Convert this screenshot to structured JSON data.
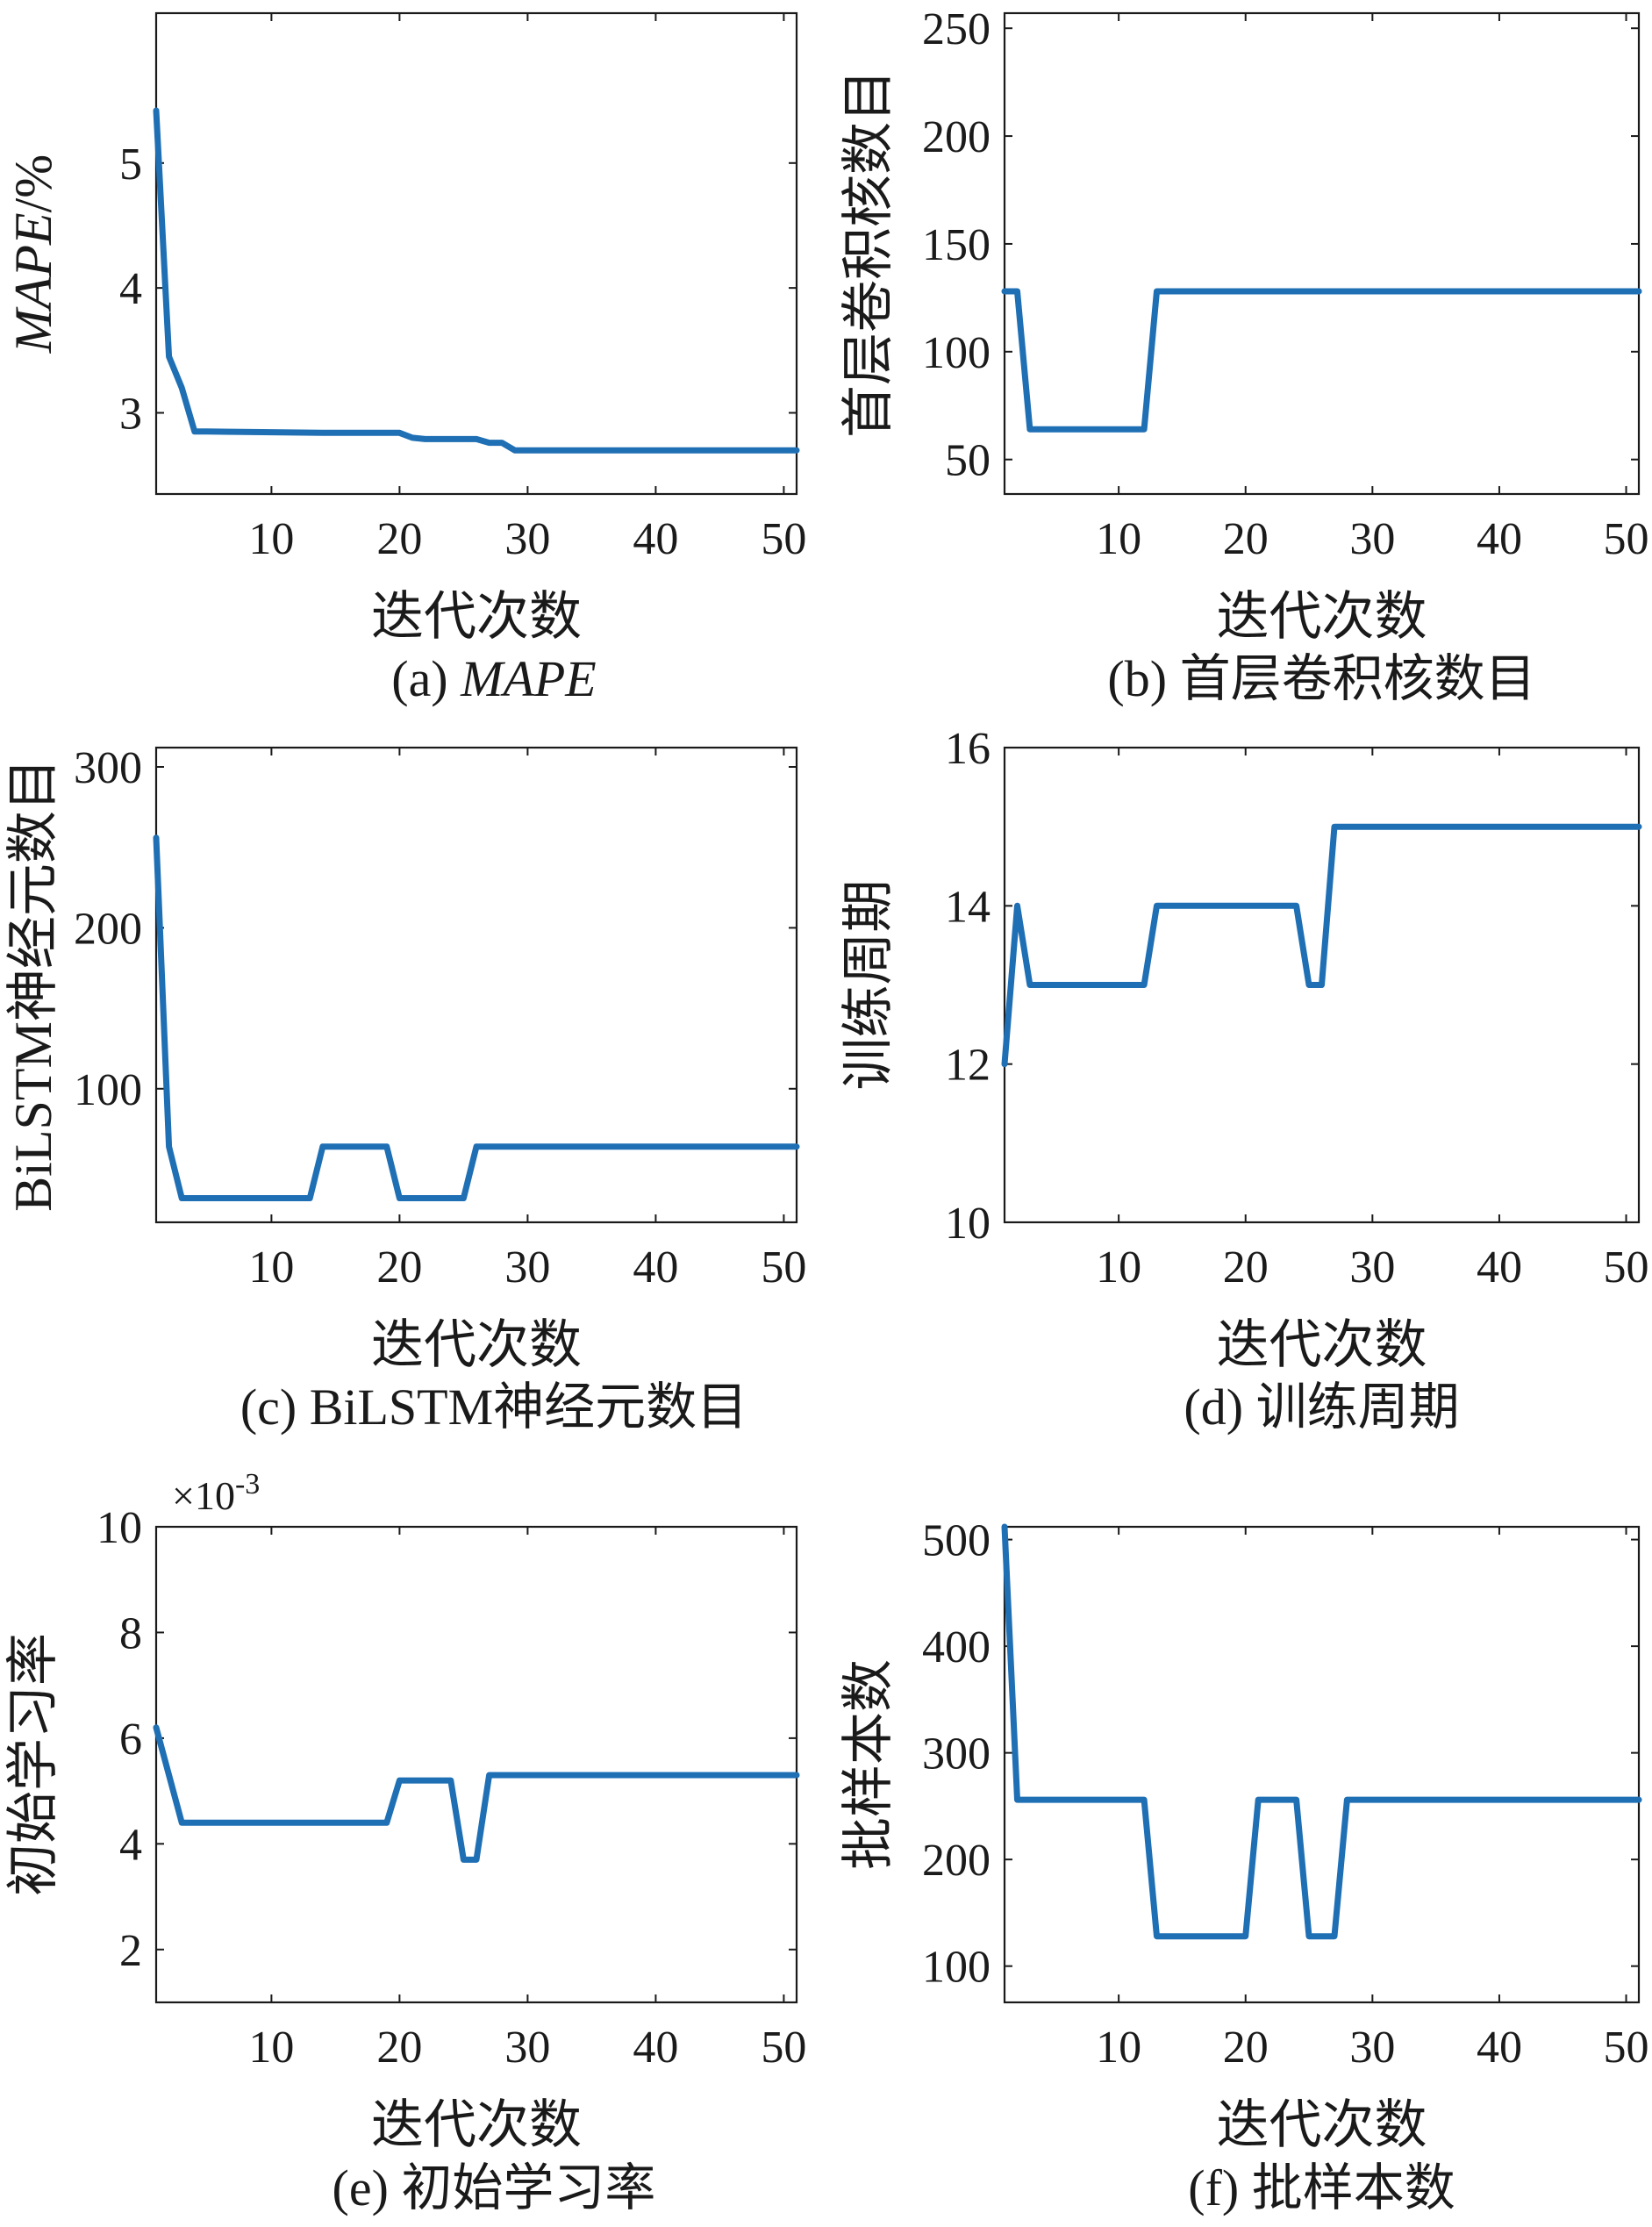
{
  "figure": {
    "line_color": "#1f6fb4",
    "axis_color": "#1a1a1a"
  },
  "chart_data": [
    {
      "id": "a",
      "type": "line",
      "caption_prefix": "(a) ",
      "caption_main": "MAPE",
      "caption_italic": true,
      "xlabel": "迭代次数",
      "ylabel": "MAPE/%",
      "ylabel_italic_part": "MAPE",
      "ylabel_plain_part": "/%",
      "xlim": [
        1,
        51
      ],
      "ylim": [
        2.35,
        6.2
      ],
      "xticks": [
        10,
        20,
        30,
        40,
        50
      ],
      "yticks": [
        3,
        4,
        5
      ],
      "ytick_labels": [
        "3",
        "4",
        "5"
      ],
      "multiplier": "",
      "x": [
        1,
        2,
        3,
        4,
        5,
        14,
        20,
        21,
        22,
        26,
        27,
        28,
        29,
        51
      ],
      "y": [
        5.42,
        3.45,
        3.2,
        2.85,
        2.85,
        2.84,
        2.84,
        2.8,
        2.79,
        2.79,
        2.76,
        2.76,
        2.7,
        2.7
      ]
    },
    {
      "id": "b",
      "type": "line",
      "caption_prefix": "(b) ",
      "caption_main": "首层卷积核数目",
      "caption_italic": false,
      "xlabel": "迭代次数",
      "ylabel": "首层卷积核数目",
      "xlim": [
        1,
        51
      ],
      "ylim": [
        34,
        257
      ],
      "xticks": [
        10,
        20,
        30,
        40,
        50
      ],
      "yticks": [
        50,
        100,
        150,
        200,
        250
      ],
      "ytick_labels": [
        "50",
        "100",
        "150",
        "200",
        "250"
      ],
      "multiplier": "",
      "x": [
        1,
        2,
        3,
        12,
        13,
        51
      ],
      "y": [
        128,
        128,
        64,
        64,
        128,
        128
      ]
    },
    {
      "id": "c",
      "type": "line",
      "caption_prefix": "(c) ",
      "caption_main": "BiLSTM神经元数目",
      "caption_italic": false,
      "xlabel": "迭代次数",
      "ylabel": "BiLSTM神经元数目",
      "xlim": [
        1,
        51
      ],
      "ylim": [
        17,
        312
      ],
      "xticks": [
        10,
        20,
        30,
        40,
        50
      ],
      "yticks": [
        100,
        200,
        300
      ],
      "ytick_labels": [
        "100",
        "200",
        "300"
      ],
      "multiplier": "",
      "x": [
        1,
        2,
        3,
        13,
        14,
        19,
        20,
        25,
        26,
        51
      ],
      "y": [
        256,
        64,
        32,
        32,
        64,
        64,
        32,
        32,
        64,
        64
      ]
    },
    {
      "id": "d",
      "type": "line",
      "caption_prefix": "(d) ",
      "caption_main": "训练周期",
      "caption_italic": false,
      "xlabel": "迭代次数",
      "ylabel": "训练周期",
      "xlim": [
        1,
        51
      ],
      "ylim": [
        10,
        16
      ],
      "xticks": [
        10,
        20,
        30,
        40,
        50
      ],
      "yticks": [
        10,
        12,
        14,
        16
      ],
      "ytick_labels": [
        "10",
        "12",
        "14",
        "16"
      ],
      "multiplier": "",
      "x": [
        1,
        2,
        3,
        12,
        13,
        24,
        25,
        26,
        27,
        51
      ],
      "y": [
        12,
        14,
        13,
        13,
        14,
        14,
        13,
        13,
        15,
        15
      ]
    },
    {
      "id": "e",
      "type": "line",
      "caption_prefix": "(e) ",
      "caption_main": "初始学习率",
      "caption_italic": false,
      "xlabel": "迭代次数",
      "ylabel": "初始学习率",
      "xlim": [
        1,
        51
      ],
      "ylim": [
        1,
        10
      ],
      "xticks": [
        10,
        20,
        30,
        40,
        50
      ],
      "yticks": [
        2,
        4,
        6,
        8,
        10
      ],
      "ytick_labels": [
        "2",
        "4",
        "6",
        "8",
        "10"
      ],
      "multiplier": "×10-3",
      "multiplier_base": "×10",
      "multiplier_exp": "-3",
      "x": [
        1,
        3,
        19,
        20,
        24,
        25,
        26,
        27,
        51
      ],
      "y": [
        6.2,
        4.4,
        4.4,
        5.2,
        5.2,
        3.7,
        3.7,
        5.3,
        5.3
      ],
      "y_scale": 0.001
    },
    {
      "id": "f",
      "type": "line",
      "caption_prefix": "(f) ",
      "caption_main": "批样本数",
      "caption_italic": false,
      "xlabel": "迭代次数",
      "ylabel": "批样本数",
      "xlim": [
        1,
        51
      ],
      "ylim": [
        66,
        512
      ],
      "xticks": [
        10,
        20,
        30,
        40,
        50
      ],
      "yticks": [
        100,
        200,
        300,
        400,
        500
      ],
      "ytick_labels": [
        "100",
        "200",
        "300",
        "400",
        "500"
      ],
      "multiplier": "",
      "x": [
        1,
        2,
        12,
        13,
        20,
        21,
        24,
        25,
        27,
        28,
        51
      ],
      "y": [
        512,
        256,
        256,
        128,
        128,
        256,
        256,
        128,
        128,
        256,
        256
      ]
    }
  ]
}
